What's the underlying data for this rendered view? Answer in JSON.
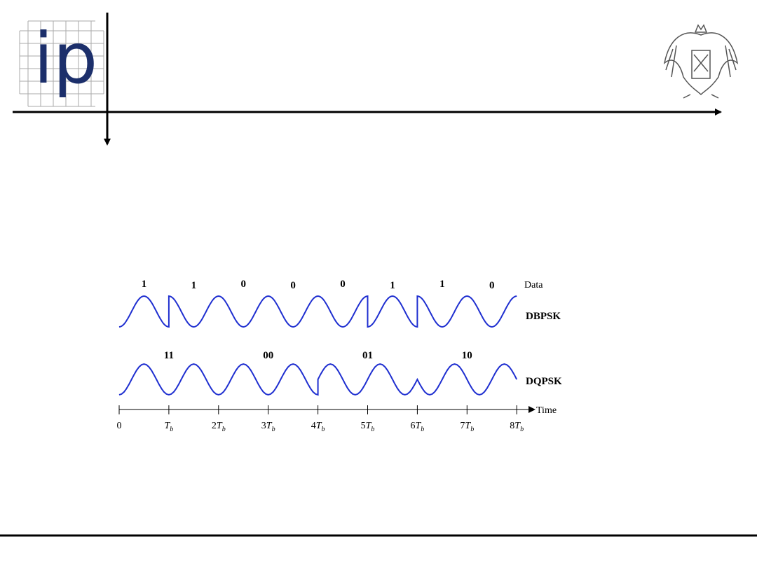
{
  "logo": {
    "text": "ip"
  },
  "diagram": {
    "data_label": "Data",
    "bits": [
      "1",
      "1",
      "0",
      "0",
      "0",
      "1",
      "1",
      "0"
    ],
    "dbpsk_label": "DBPSK",
    "symbols": [
      "11",
      "00",
      "01",
      "10"
    ],
    "dqpsk_label": "DQPSK",
    "axis_label": "Time",
    "ticks": [
      {
        "coef": "0"
      },
      {
        "var": "T",
        "sub": "b"
      },
      {
        "coef": "2",
        "var": "T",
        "sub": "b"
      },
      {
        "coef": "3",
        "var": "T",
        "sub": "b"
      },
      {
        "coef": "4",
        "var": "T",
        "sub": "b"
      },
      {
        "coef": "5",
        "var": "T",
        "sub": "b"
      },
      {
        "coef": "6",
        "var": "T",
        "sub": "b"
      },
      {
        "coef": "7",
        "var": "T",
        "sub": "b"
      },
      {
        "coef": "8",
        "var": "T",
        "sub": "b"
      }
    ]
  }
}
